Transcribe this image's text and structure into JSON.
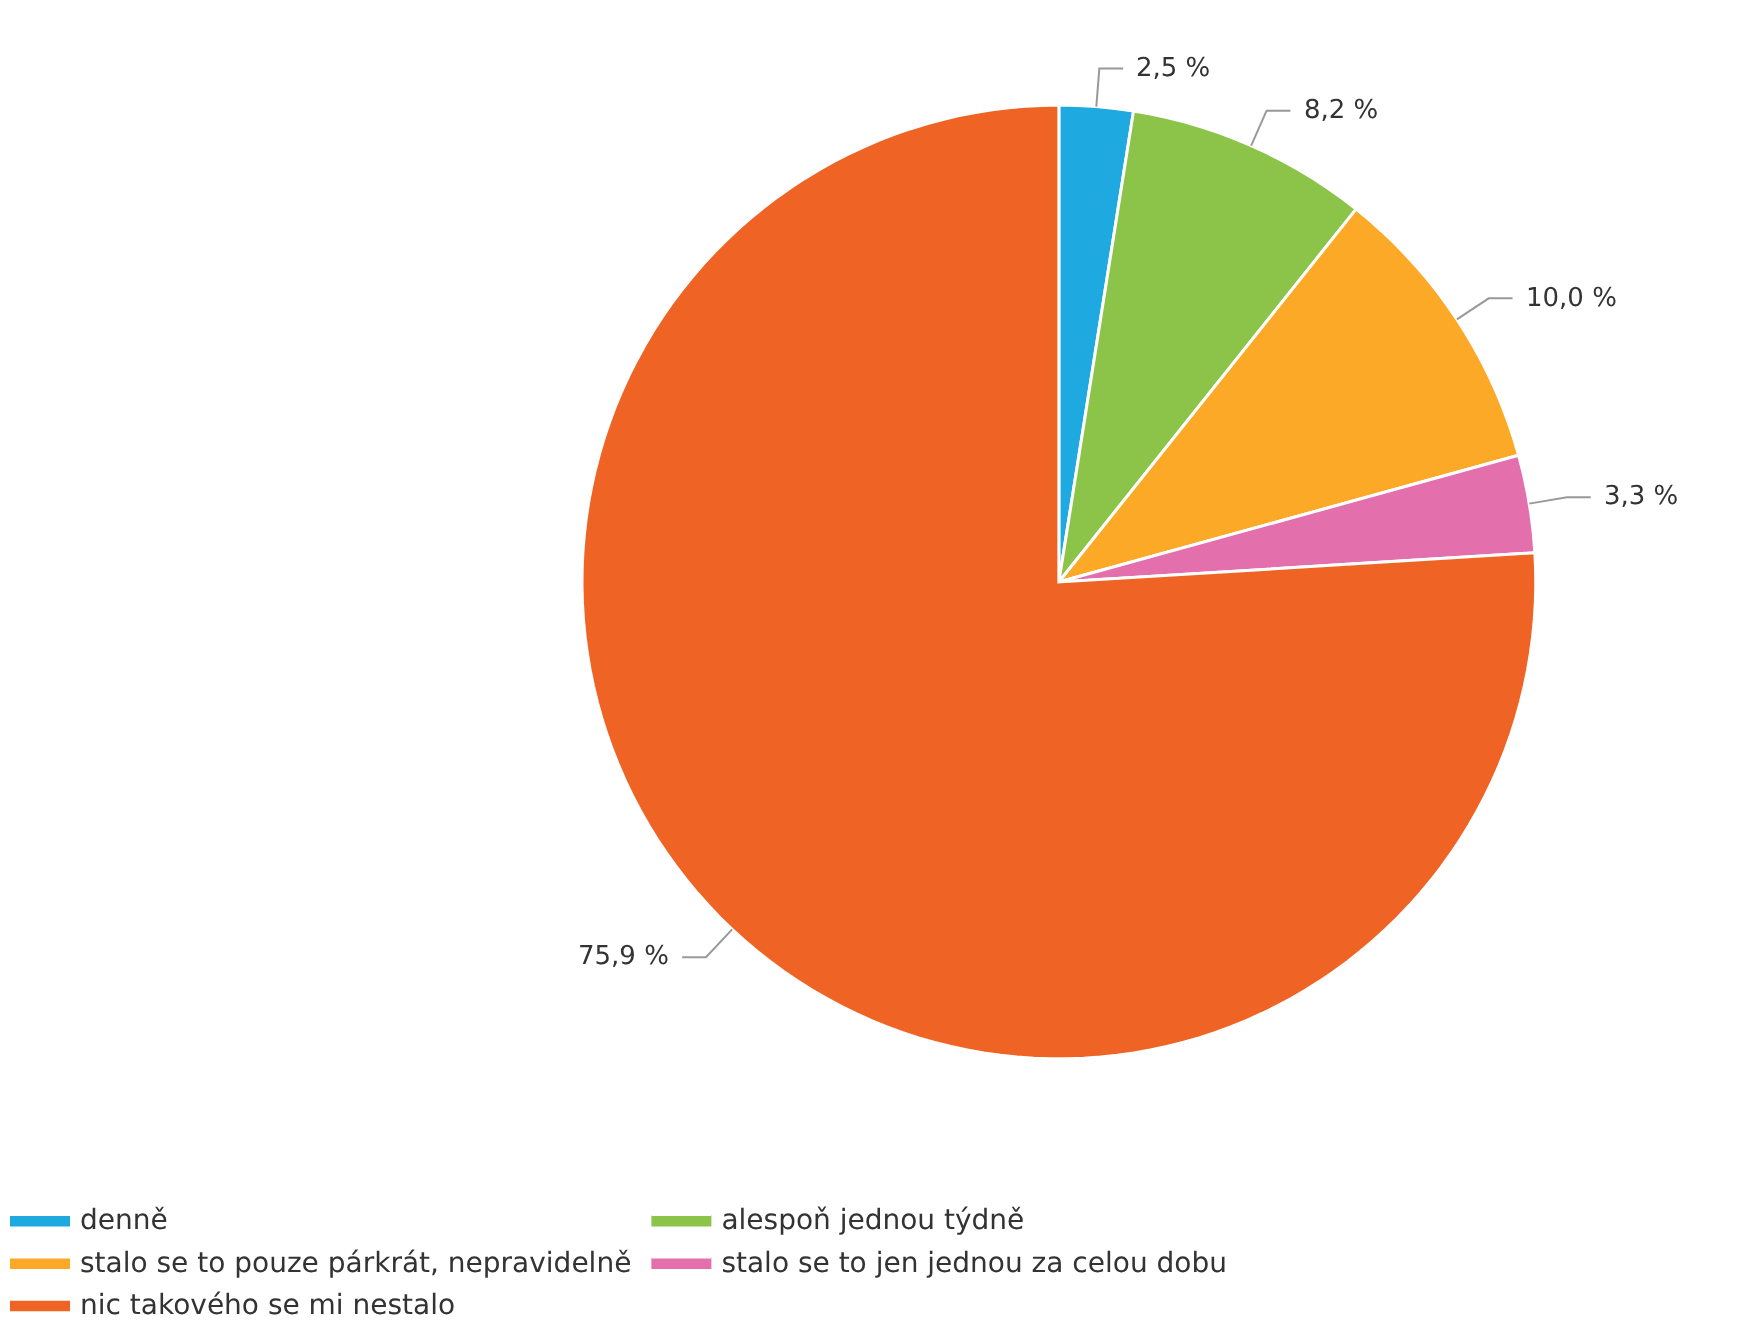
{
  "chart_data": {
    "type": "pie",
    "categories": [
      "denně",
      "alespoň jednou týdně",
      "stalo se to pouze párkrát, nepravidelně",
      "stalo se to jen jednou za celou dobu",
      "nic takového se mi nestalo"
    ],
    "values": [
      2.5,
      8.2,
      10.0,
      3.3,
      75.9
    ],
    "value_labels": [
      "2,5 %",
      "8,2 %",
      "10,0 %",
      "3,3 %",
      "75,9 %"
    ],
    "colors": [
      "#1ea9e1",
      "#8cc44a",
      "#fba927",
      "#e46fad",
      "#ef6424"
    ],
    "legend": "bottom"
  }
}
